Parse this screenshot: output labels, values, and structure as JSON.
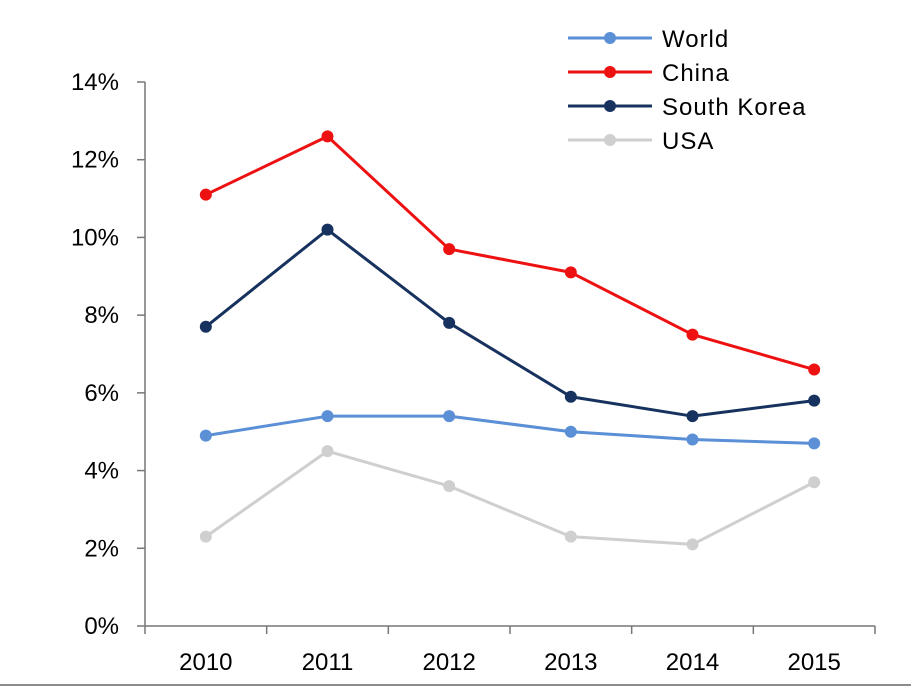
{
  "chart_data": {
    "type": "line",
    "title": "",
    "xlabel": "",
    "ylabel": "",
    "categories": [
      "2010",
      "2011",
      "2012",
      "2013",
      "2014",
      "2015"
    ],
    "ylim": [
      0,
      14
    ],
    "yticks": [
      "0%",
      "2%",
      "4%",
      "6%",
      "8%",
      "10%",
      "12%",
      "14%"
    ],
    "grid": false,
    "legend_position": "top-right",
    "series": [
      {
        "name": "World",
        "color": "#5b8fd6",
        "values": [
          4.9,
          5.4,
          5.4,
          5.0,
          4.8,
          4.7
        ]
      },
      {
        "name": "China",
        "color": "#ee1111",
        "values": [
          11.1,
          12.6,
          9.7,
          9.1,
          7.5,
          6.6
        ]
      },
      {
        "name": "South Korea",
        "color": "#17325e",
        "values": [
          7.7,
          10.2,
          7.8,
          5.9,
          5.4,
          5.8
        ]
      },
      {
        "name": "USA",
        "color": "#cfcfcf",
        "values": [
          2.3,
          4.5,
          3.6,
          2.3,
          2.1,
          3.7
        ]
      }
    ]
  }
}
